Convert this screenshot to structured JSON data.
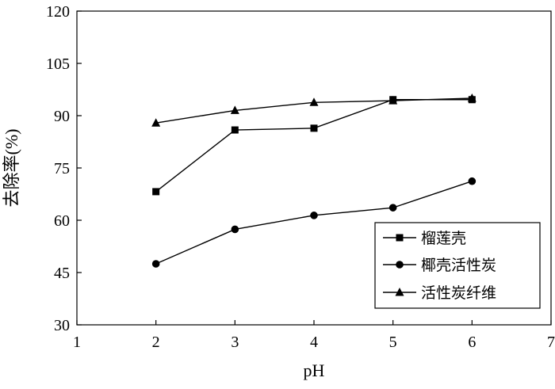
{
  "chart_data": {
    "type": "line",
    "xlabel": "pH",
    "ylabel": "去除率(%)",
    "xlim": [
      1,
      7
    ],
    "ylim": [
      30,
      120
    ],
    "xticks": [
      1,
      2,
      3,
      4,
      5,
      6,
      7
    ],
    "yticks": [
      30,
      45,
      60,
      75,
      90,
      105,
      120
    ],
    "grid": false,
    "legend_position": "bottom-right",
    "series": [
      {
        "name": "榴莲壳",
        "marker": "square",
        "color": "#000000",
        "x": [
          2,
          3,
          4,
          5,
          6
        ],
        "y": [
          68.2,
          85.9,
          86.4,
          94.6,
          94.6
        ]
      },
      {
        "name": "椰壳活性炭",
        "marker": "circle",
        "color": "#000000",
        "x": [
          2,
          3,
          4,
          5,
          6
        ],
        "y": [
          47.5,
          57.4,
          61.4,
          63.6,
          71.2
        ]
      },
      {
        "name": "活性炭纤维",
        "marker": "triangle",
        "color": "#000000",
        "x": [
          2,
          3,
          4,
          5,
          6
        ],
        "y": [
          87.9,
          91.5,
          93.8,
          94.3,
          95.0
        ]
      }
    ]
  }
}
